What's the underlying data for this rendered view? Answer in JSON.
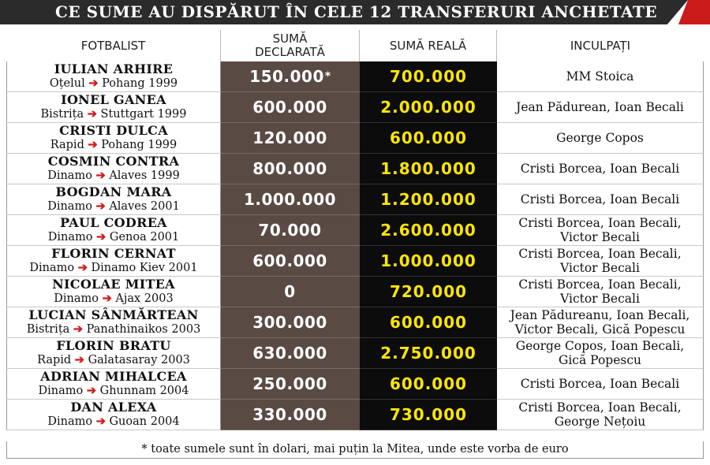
{
  "title": "CE SUME AU DISPĂRUT ÎN CELE 12 TRANSFERURI ANCHETATE",
  "headers": {
    "player": "FOTBALIST",
    "declared": "SUMĂ DECLARATĂ",
    "real": "SUMĂ REALĂ",
    "accused": "INCULPAȚI"
  },
  "colors": {
    "declared_bg": "#5a4a44",
    "real_bg": "#0c0c0c",
    "real_text": "#ffe600",
    "arrow": "#d11a1a",
    "banner": "#2b2b2b",
    "banner_accent": "#cc1b1b"
  },
  "arrow_icon": "right-arrow-icon",
  "rows": [
    {
      "name": "IULIAN ARHIRE",
      "from": "Oțelul",
      "to": "Pohang 1999",
      "declared": "150.000",
      "declared_mark": "*",
      "real": "700.000",
      "accused": [
        "MM Stoica"
      ]
    },
    {
      "name": "IONEL GANEA",
      "from": "Bistrița",
      "to": "Stuttgart 1999",
      "declared": "600.000",
      "declared_mark": "",
      "real": "2.000.000",
      "accused": [
        "Jean Pădurean, Ioan Becali"
      ]
    },
    {
      "name": "CRISTI DULCA",
      "from": "Rapid",
      "to": "Pohang 1999",
      "declared": "120.000",
      "declared_mark": "",
      "real": "600.000",
      "accused": [
        "George Copos"
      ]
    },
    {
      "name": "COSMIN CONTRA",
      "from": "Dinamo",
      "to": "Alaves 1999",
      "declared": "800.000",
      "declared_mark": "",
      "real": "1.800.000",
      "accused": [
        "Cristi Borcea, Ioan Becali"
      ]
    },
    {
      "name": "BOGDAN MARA",
      "from": "Dinamo",
      "to": "Alaves 2001",
      "declared": "1.000.000",
      "declared_mark": "",
      "real": "1.200.000",
      "accused": [
        "Cristi Borcea, Ioan Becali"
      ]
    },
    {
      "name": "PAUL CODREA",
      "from": "Dinamo",
      "to": "Genoa 2001",
      "declared": "70.000",
      "declared_mark": "",
      "real": "2.600.000",
      "accused": [
        "Cristi Borcea, Ioan Becali,",
        "Victor Becali"
      ]
    },
    {
      "name": "FLORIN CERNAT",
      "from": "Dinamo",
      "to": "Dinamo Kiev 2001",
      "declared": "600.000",
      "declared_mark": "",
      "real": "1.000.000",
      "accused": [
        "Cristi Borcea, Ioan Becali,",
        "Victor Becali"
      ]
    },
    {
      "name": "NICOLAE MITEA",
      "from": "Dinamo",
      "to": "Ajax 2003",
      "declared": "0",
      "declared_mark": "",
      "real": "720.000",
      "accused": [
        "Cristi Borcea, Ioan Becali,",
        "Victor Becali"
      ]
    },
    {
      "name": "LUCIAN SÂNMĂRTEAN",
      "from": "Bistrița",
      "to": "Panathinaikos 2003",
      "declared": "300.000",
      "declared_mark": "",
      "real": "600.000",
      "accused": [
        "Jean Pădureanu, Ioan Becali,",
        "Victor Becali, Gică Popescu"
      ]
    },
    {
      "name": "FLORIN BRATU",
      "from": "Rapid",
      "to": "Galatasaray 2003",
      "declared": "630.000",
      "declared_mark": "",
      "real": "2.750.000",
      "accused": [
        "George Copos, Ioan Becali,",
        "Gică Popescu"
      ]
    },
    {
      "name": "ADRIAN MIHALCEA",
      "from": "Dinamo",
      "to": "Ghunnam 2004",
      "declared": "250.000",
      "declared_mark": "",
      "real": "600.000",
      "accused": [
        "Cristi Borcea, Ioan Becali"
      ]
    },
    {
      "name": "DAN ALEXA",
      "from": "Dinamo",
      "to": "Guoan 2004",
      "declared": "330.000",
      "declared_mark": "",
      "real": "730.000",
      "accused": [
        "Cristi Borcea, Ioan Becali,",
        "George Nețoiu"
      ]
    }
  ],
  "footnote": "* toate sumele sunt în dolari, mai puțin la Mitea, unde este vorba de euro"
}
